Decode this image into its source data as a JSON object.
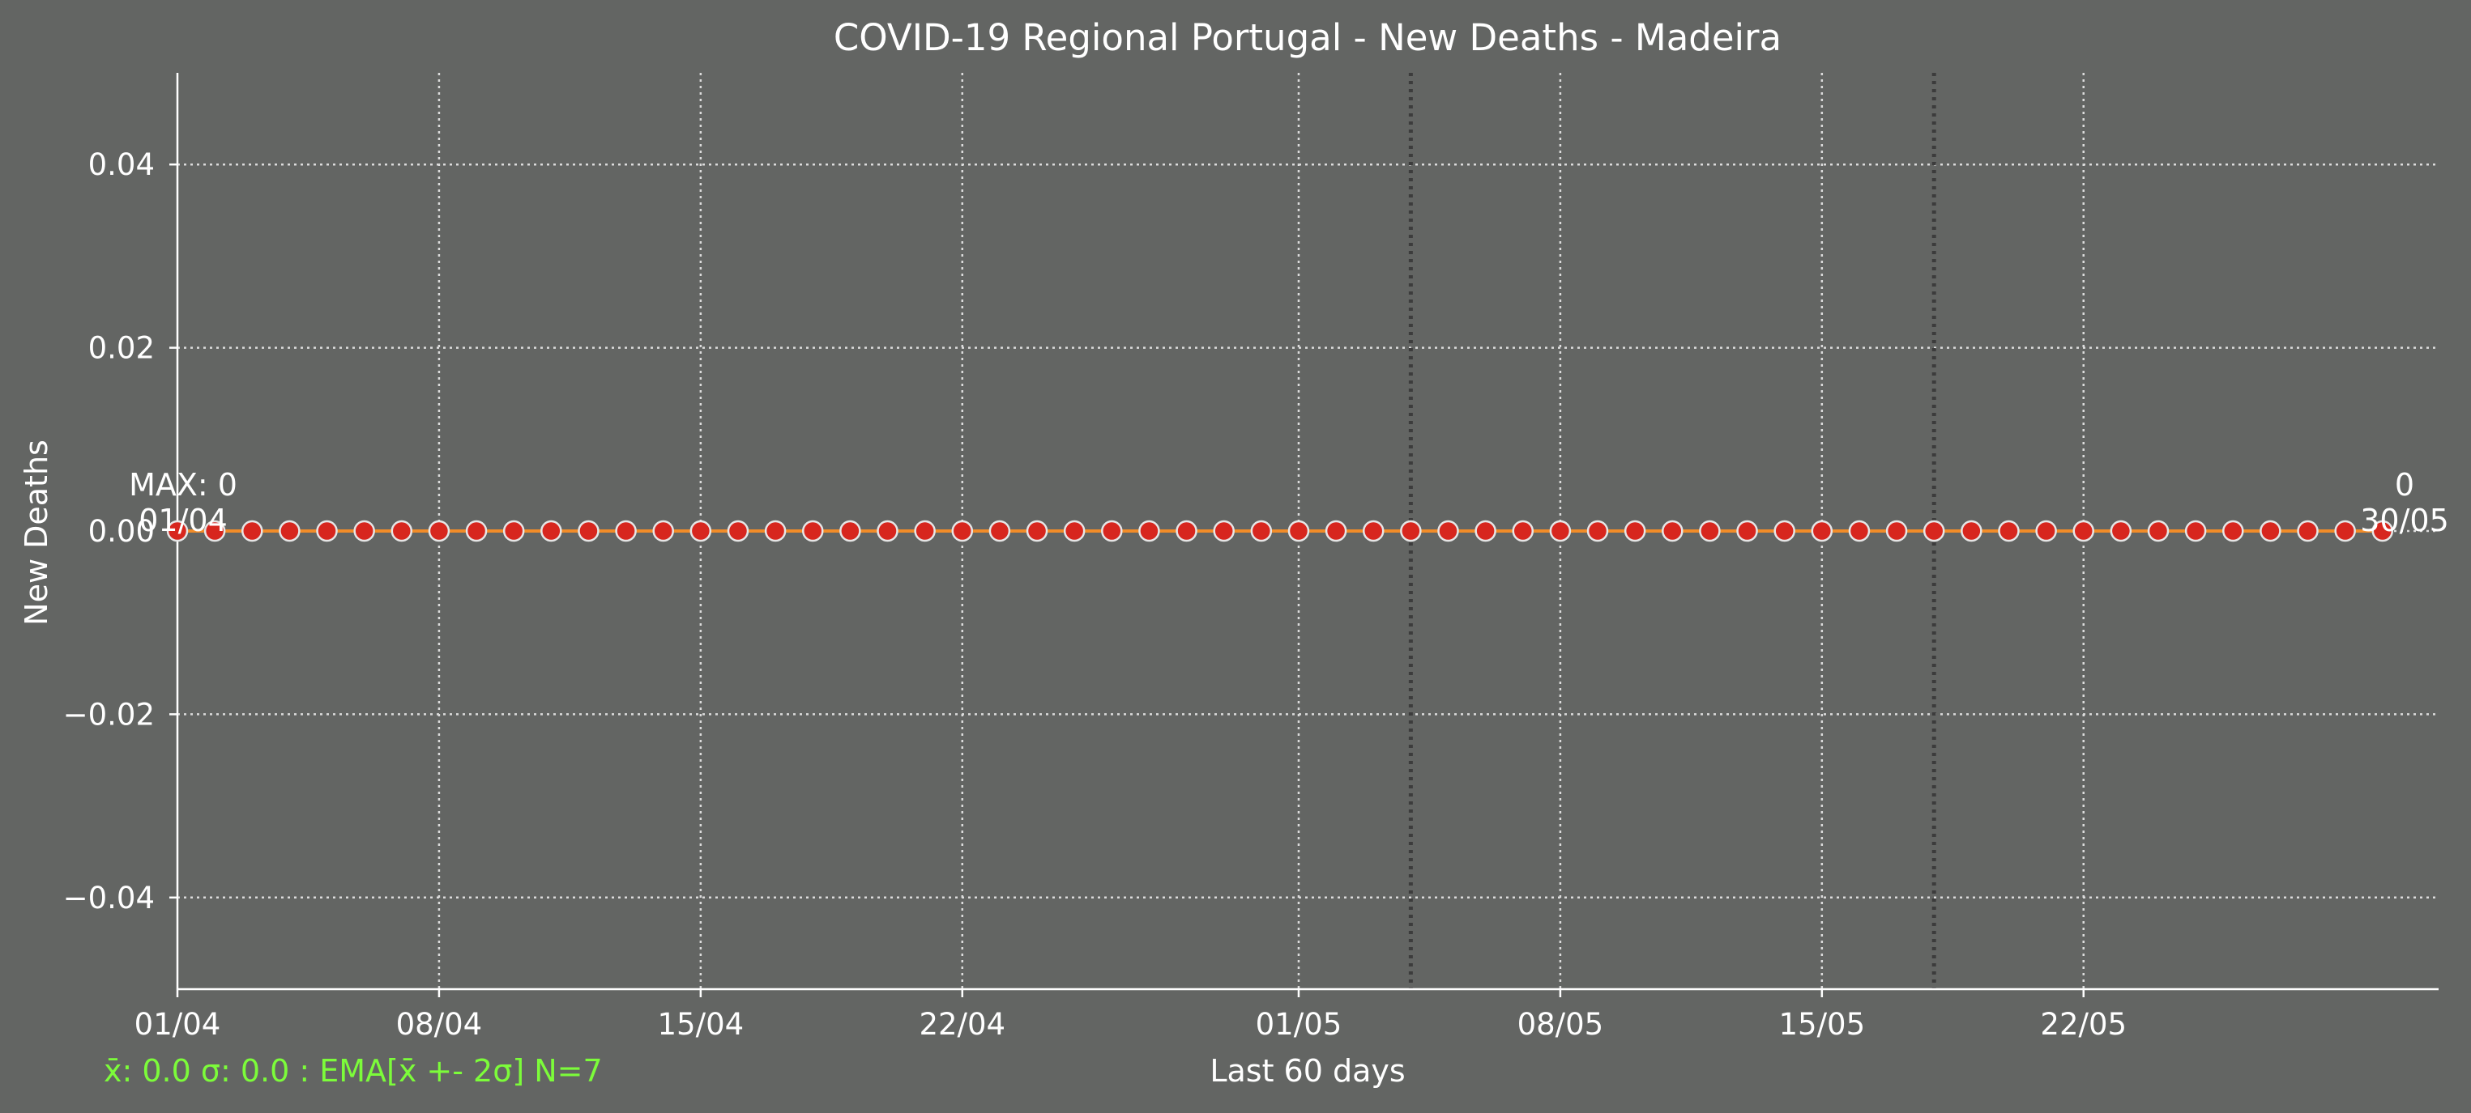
{
  "colors": {
    "background": "#636563",
    "text": "#ffffff",
    "grid": "#dcdcdc",
    "axis": "#ffffff",
    "line": "#f28c28",
    "marker_fill": "#d7261e",
    "marker_edge": "#e6e6e6",
    "vline": "#3c3c3c",
    "stats": "#7cfc3a"
  },
  "chart_data": {
    "type": "line",
    "title": "COVID-19 Regional Portugal - New Deaths - Madeira",
    "xlabel": "Last 60 days",
    "ylabel": "New Deaths",
    "x_start": "01/04",
    "x_end": "30/05",
    "num_points": 60,
    "series": [
      {
        "values": [
          0,
          0,
          0,
          0,
          0,
          0,
          0,
          0,
          0,
          0,
          0,
          0,
          0,
          0,
          0,
          0,
          0,
          0,
          0,
          0,
          0,
          0,
          0,
          0,
          0,
          0,
          0,
          0,
          0,
          0,
          0,
          0,
          0,
          0,
          0,
          0,
          0,
          0,
          0,
          0,
          0,
          0,
          0,
          0,
          0,
          0,
          0,
          0,
          0,
          0,
          0,
          0,
          0,
          0,
          0,
          0,
          0,
          0,
          0,
          0
        ],
        "marker": "circle"
      }
    ],
    "ylim": [
      -0.05,
      0.05
    ],
    "xlim_days": [
      0,
      60.5
    ],
    "x_ticks": [
      {
        "day": 0,
        "label": "01/04"
      },
      {
        "day": 7,
        "label": "08/04"
      },
      {
        "day": 14,
        "label": "15/04"
      },
      {
        "day": 21,
        "label": "22/04"
      },
      {
        "day": 30,
        "label": "01/05"
      },
      {
        "day": 37,
        "label": "08/05"
      },
      {
        "day": 44,
        "label": "15/05"
      },
      {
        "day": 51,
        "label": "22/05"
      }
    ],
    "y_ticks": [
      {
        "value": 0.04,
        "label": "0.04"
      },
      {
        "value": 0.02,
        "label": "0.02"
      },
      {
        "value": 0.0,
        "label": "0.00"
      },
      {
        "value": -0.02,
        "label": "−0.02"
      },
      {
        "value": -0.04,
        "label": "−0.04"
      }
    ],
    "vertical_lines_days": [
      33,
      47
    ],
    "grid": true,
    "annotations": {
      "max_label": "MAX: 0",
      "max_date": "01/04",
      "last_value": "0",
      "last_date": "30/05"
    },
    "stats_text": "x̄: 0.0 σ: 0.0 : EMA[x̄ +- 2σ] N=7"
  }
}
